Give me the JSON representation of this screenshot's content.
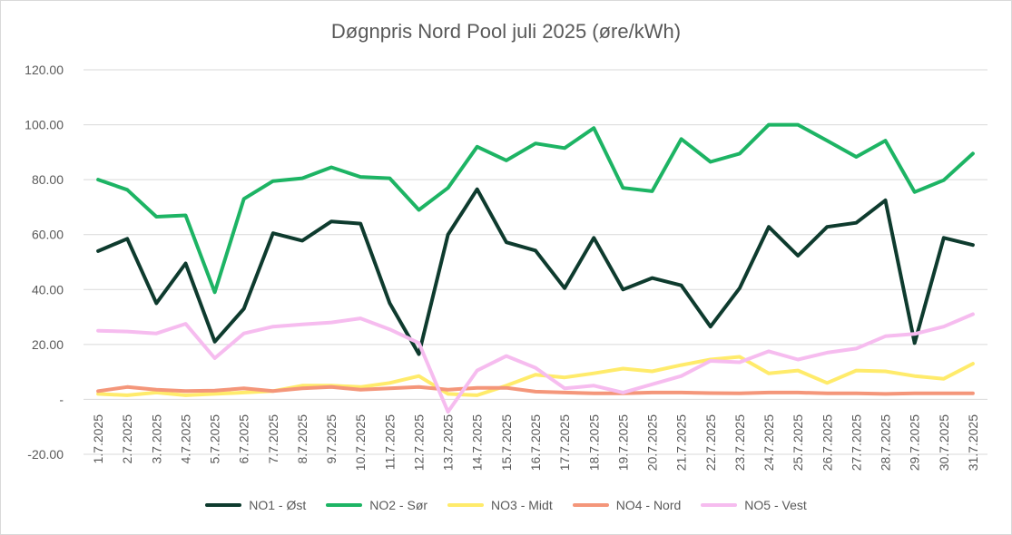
{
  "chart_data": {
    "type": "line",
    "title": "Døgnpris Nord Pool juli 2025 (øre/kWh)",
    "categories": [
      "1.7.2025",
      "2.7.2025",
      "3.7.2025",
      "4.7.2025",
      "5.7.2025",
      "6.7.2025",
      "7.7.2025",
      "8.7.2025",
      "9.7.2025",
      "10.7.2025",
      "11.7.2025",
      "12.7.2025",
      "13.7.2025",
      "14.7.2025",
      "15.7.2025",
      "16.7.2025",
      "17.7.2025",
      "18.7.2025",
      "19.7.2025",
      "20.7.2025",
      "21.7.2025",
      "22.7.2025",
      "23.7.2025",
      "24.7.2025",
      "25.7.2025",
      "26.7.2025",
      "27.7.2025",
      "28.7.2025",
      "29.7.2025",
      "30.7.2025",
      "31.7.2025"
    ],
    "y_tick_labels": [
      "-20.00",
      "-",
      "20.00",
      "40.00",
      "60.00",
      "80.00",
      "100.00",
      "120.00"
    ],
    "y_ticks": [
      -20,
      0,
      20,
      40,
      60,
      80,
      100,
      120
    ],
    "ylim": [
      -20,
      120
    ],
    "grid": true,
    "legend_position": "bottom",
    "series": [
      {
        "name": "NO1 - Øst",
        "color": "#0e3b2e",
        "values": [
          54,
          58.5,
          35,
          49.5,
          21,
          33,
          60.5,
          57.8,
          64.8,
          64,
          35,
          16.5,
          60,
          76.5,
          57.2,
          54.2,
          40.5,
          58.8,
          40,
          44.2,
          41.5,
          26.5,
          40.5,
          62.8,
          52.3,
          62.8,
          64.3,
          72.5,
          20.5,
          58.8,
          56.2
        ]
      },
      {
        "name": "NO2 - Sør",
        "color": "#1db464",
        "values": [
          80,
          76.3,
          66.5,
          67,
          39,
          73,
          79.5,
          80.5,
          84.5,
          81,
          80.5,
          69,
          77,
          92,
          87,
          93.2,
          91.5,
          98.8,
          77,
          75.8,
          94.8,
          86.5,
          89.5,
          100,
          100,
          94.2,
          88.3,
          94.2,
          75.5,
          79.8,
          89.5
        ]
      },
      {
        "name": "NO3 - Midt",
        "color": "#ffeb6b",
        "values": [
          2,
          1.5,
          2.5,
          1.5,
          2,
          2.5,
          3,
          5,
          5,
          4.5,
          6,
          8.5,
          2,
          1.5,
          5,
          9,
          8,
          9.5,
          11.2,
          10.2,
          12.5,
          14.5,
          15.5,
          9.5,
          10.5,
          6,
          10.5,
          10.2,
          8.5,
          7.5,
          13
        ]
      },
      {
        "name": "NO4 - Nord",
        "color": "#f4967a",
        "values": [
          3,
          4.5,
          3.5,
          3,
          3.2,
          4,
          3,
          4,
          4.5,
          3.5,
          4,
          4.5,
          3.5,
          4.2,
          4.2,
          2.8,
          2.5,
          2.2,
          2.2,
          2.5,
          2.5,
          2.3,
          2.2,
          2.5,
          2.5,
          2.2,
          2.2,
          2,
          2.2,
          2.2,
          2.2
        ]
      },
      {
        "name": "NO5 - Vest",
        "color": "#f6bcef",
        "values": [
          25,
          24.7,
          24,
          27.5,
          15,
          24,
          26.5,
          27.3,
          28,
          29.5,
          25.5,
          20.5,
          -4.5,
          10.5,
          15.8,
          11.5,
          4,
          5,
          2.5,
          5.5,
          8.5,
          14,
          13.5,
          17.5,
          14.5,
          17,
          18.5,
          23,
          23.8,
          26.5,
          31
        ]
      }
    ]
  }
}
